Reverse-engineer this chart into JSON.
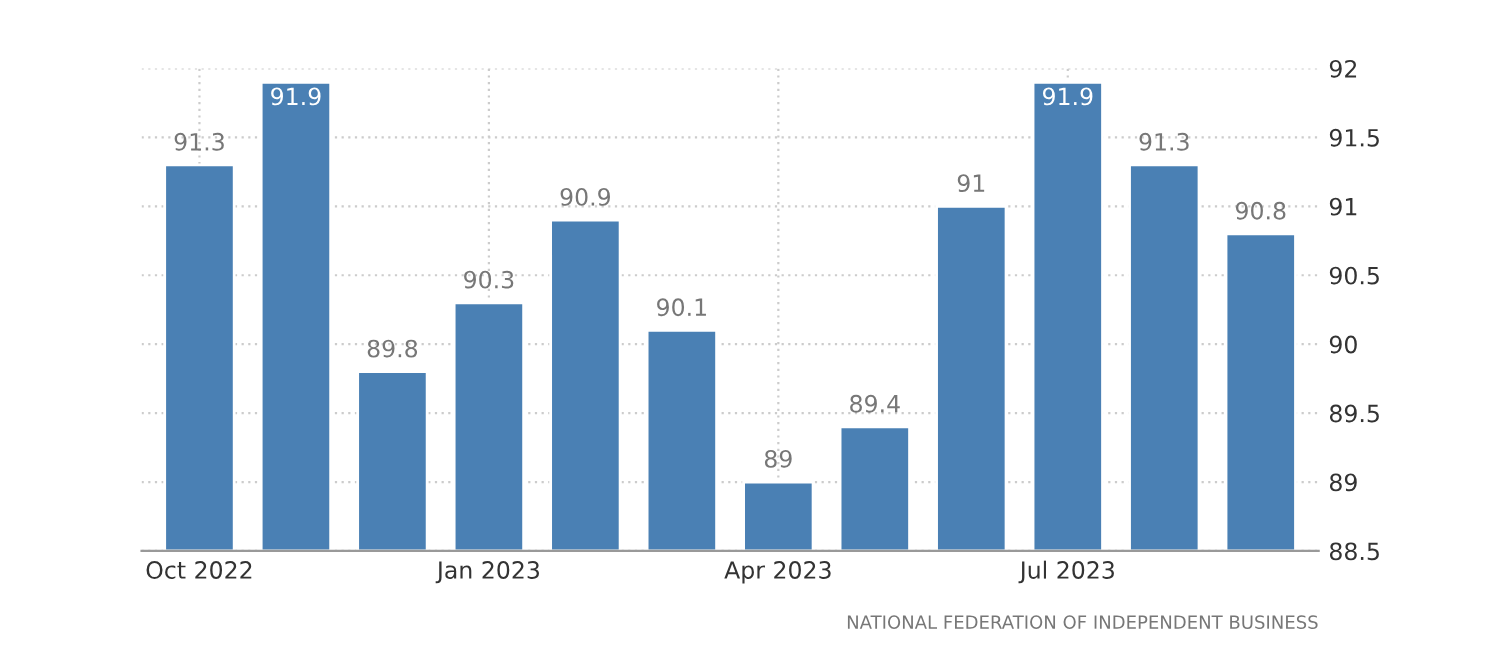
{
  "chart_data": {
    "type": "bar",
    "categories": [
      "Oct 2022",
      null,
      null,
      "Jan 2023",
      null,
      null,
      "Apr 2023",
      null,
      null,
      "Jul 2023",
      null,
      null
    ],
    "values": [
      91.3,
      91.9,
      89.8,
      90.3,
      90.9,
      90.1,
      89,
      89.4,
      91,
      91.9,
      91.3,
      90.8
    ],
    "color": "#4a80b4",
    "ylim": [
      88.5,
      92
    ],
    "yticks": [
      88.5,
      89,
      89.5,
      90,
      90.5,
      91,
      91.5,
      92
    ],
    "grid": true,
    "data_labels": true,
    "annotations": [
      "NATIONAL FEDERATION OF INDEPENDENT BUSINESS"
    ]
  }
}
